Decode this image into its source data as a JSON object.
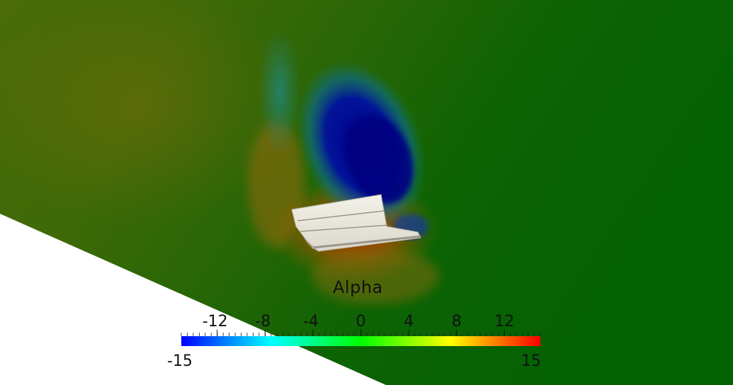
{
  "colorbar": {
    "title": "Alpha",
    "min_label": "-15",
    "max_label": "15",
    "range": [
      -15,
      15
    ],
    "ticks": [
      {
        "value": -12,
        "label": "-12"
      },
      {
        "value": -8,
        "label": "-8"
      },
      {
        "value": -4,
        "label": "-4"
      },
      {
        "value": 0,
        "label": "0"
      },
      {
        "value": 4,
        "label": "4"
      },
      {
        "value": 8,
        "label": "8"
      },
      {
        "value": 12,
        "label": "12"
      }
    ],
    "colormap": [
      "#0000ff",
      "#00ffff",
      "#00ff00",
      "#ffff00",
      "#ff0000"
    ]
  },
  "scene": {
    "background_color": "#ffffff",
    "field_base_color": "#0a6b0a",
    "low_color": "#00007a",
    "high_color": "#c83200",
    "body_color": "#eae7dc"
  }
}
